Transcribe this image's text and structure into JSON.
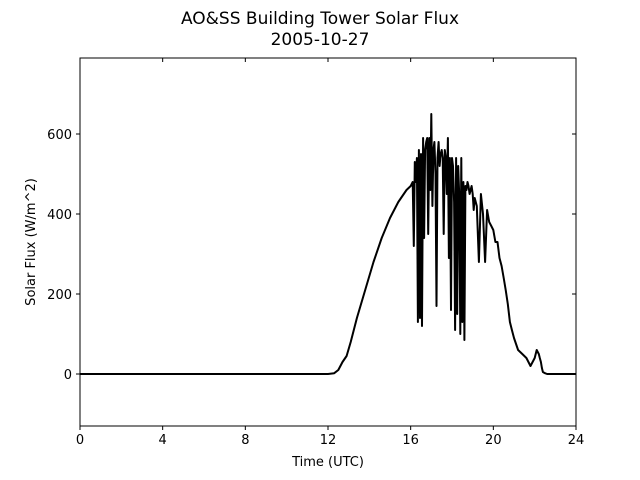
{
  "chart_data": {
    "type": "line",
    "title": "AO&SS Building Tower Solar Flux",
    "subtitle": "2005-10-27",
    "xlabel": "Time (UTC)",
    "ylabel": "Solar Flux (W/m^2)",
    "xlim": [
      0,
      24
    ],
    "ylim": [
      -130,
      790
    ],
    "x_ticks": [
      0,
      4,
      8,
      12,
      16,
      20,
      24
    ],
    "y_ticks": [
      0,
      200,
      400,
      600
    ],
    "grid": false,
    "legend": "none",
    "line_color": "#000000",
    "series": [
      {
        "x": [
          0,
          12.0,
          12.3,
          12.5,
          12.7,
          12.9,
          13.1,
          13.4,
          13.8,
          14.2,
          14.6,
          15.0,
          15.4,
          15.8,
          16.0,
          16.1,
          16.15,
          16.2,
          16.25,
          16.3,
          16.35,
          16.4,
          16.45,
          16.5,
          16.55,
          16.6,
          16.65,
          16.7,
          16.75,
          16.8,
          16.85,
          16.9,
          16.95,
          17.0,
          17.05,
          17.1,
          17.15,
          17.2,
          17.25,
          17.3,
          17.35,
          17.4,
          17.45,
          17.5,
          17.55,
          17.6,
          17.65,
          17.7,
          17.75,
          17.8,
          17.85,
          17.9,
          17.95,
          18.0,
          18.05,
          18.1,
          18.15,
          18.2,
          18.25,
          18.3,
          18.35,
          18.4,
          18.45,
          18.5,
          18.55,
          18.6,
          18.65,
          18.7,
          18.75,
          18.8,
          18.85,
          18.9,
          18.95,
          19.0,
          19.05,
          19.1,
          19.2,
          19.3,
          19.4,
          19.5,
          19.6,
          19.7,
          19.8,
          19.9,
          20.0,
          20.1,
          20.2,
          20.3,
          20.4,
          20.5,
          20.6,
          20.7,
          20.8,
          20.9,
          21.0,
          21.2,
          21.4,
          21.6,
          21.8,
          22.0,
          22.1,
          22.2,
          22.25,
          22.3,
          22.35,
          22.4,
          22.5,
          22.6,
          22.8,
          23.0,
          23.2,
          24.0
        ],
        "y": [
          0,
          0,
          2,
          10,
          30,
          45,
          80,
          140,
          210,
          280,
          340,
          390,
          430,
          460,
          470,
          480,
          320,
          530,
          480,
          540,
          130,
          560,
          140,
          550,
          120,
          590,
          340,
          560,
          580,
          590,
          350,
          590,
          460,
          650,
          420,
          560,
          580,
          500,
          170,
          540,
          580,
          520,
          550,
          560,
          540,
          350,
          560,
          540,
          450,
          590,
          290,
          540,
          160,
          540,
          520,
          430,
          110,
          540,
          150,
          520,
          450,
          100,
          540,
          130,
          480,
          85,
          470,
          460,
          480,
          470,
          450,
          460,
          470,
          450,
          410,
          440,
          420,
          280,
          450,
          400,
          280,
          410,
          380,
          370,
          360,
          330,
          330,
          290,
          270,
          240,
          210,
          175,
          130,
          110,
          90,
          60,
          50,
          40,
          20,
          40,
          60,
          50,
          40,
          30,
          15,
          5,
          2,
          0,
          0,
          0,
          0,
          0
        ]
      }
    ]
  }
}
